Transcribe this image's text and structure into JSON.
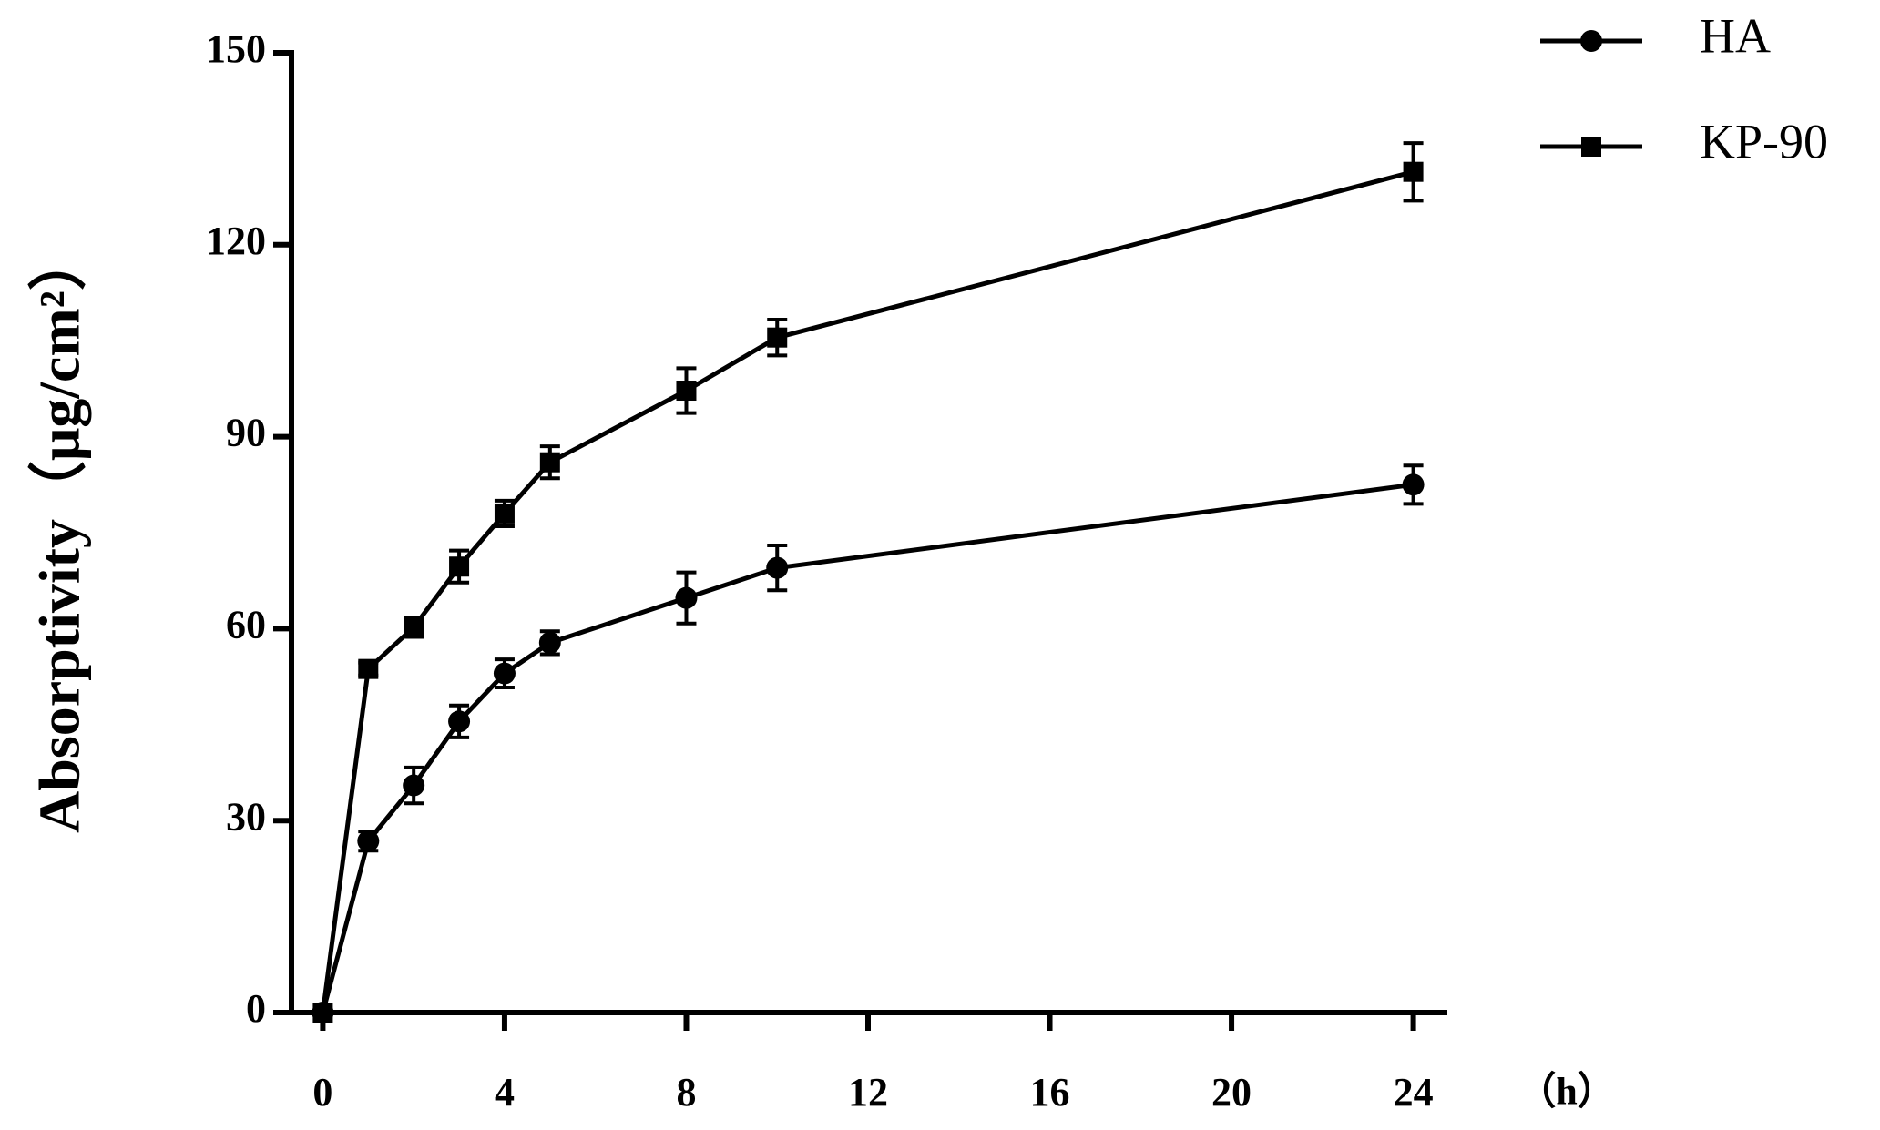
{
  "chart_data": {
    "type": "line",
    "ylabel": "Absorptivity（μg/cm²）",
    "xlabel": "（h）",
    "x": [
      0,
      1,
      2,
      3,
      4,
      5,
      8,
      10,
      24
    ],
    "series": [
      {
        "name": "HA",
        "color": "#000000",
        "marker": "circle",
        "values": [
          0,
          26.8,
          35.5,
          45.5,
          53,
          57.8,
          64.8,
          69.5,
          82.5
        ],
        "errors": [
          0,
          1.5,
          2.8,
          2.5,
          2.2,
          1.8,
          4,
          3.5,
          3
        ]
      },
      {
        "name": "KP-90",
        "color": "#000000",
        "marker": "square",
        "values": [
          0,
          53.7,
          60.2,
          69.7,
          78,
          86,
          97.2,
          105.5,
          131.4
        ],
        "errors": [
          0,
          1,
          1.5,
          2.5,
          2,
          2.5,
          3.5,
          2.8,
          4.5
        ]
      }
    ],
    "xlim": [
      -0.69,
      24.75
    ],
    "xticks": [
      0,
      4,
      8,
      12,
      16,
      20,
      24
    ],
    "ylim": [
      0,
      150
    ],
    "yticks": [
      0,
      30,
      60,
      90,
      120,
      150
    ],
    "legend": "top-right"
  }
}
